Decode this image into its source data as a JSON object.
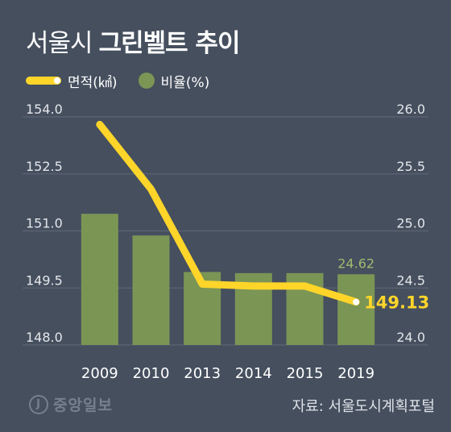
{
  "title": {
    "plain": "서울시",
    "bold": "그린벨트 추이"
  },
  "legend": {
    "line_label": "면적(㎢)",
    "bar_label": "비율(%)"
  },
  "source": "자료: 서울도시계획포털",
  "logo_text": "중앙일보",
  "colors": {
    "background": "#454f5e",
    "line": "#ffd52a",
    "bar": "#7b9555",
    "grid": "#5e6877",
    "axis_text": "#e3e6ea",
    "last_line_label": "#ffd52a",
    "last_bar_label": "#9fbb6f"
  },
  "chart_data": {
    "type": "bar+line",
    "categories": [
      "2009",
      "2010",
      "2013",
      "2014",
      "2015",
      "2019"
    ],
    "series": [
      {
        "name": "비율(%)",
        "type": "bar",
        "axis": "right",
        "values": [
          25.15,
          24.96,
          24.64,
          24.63,
          24.63,
          24.62
        ]
      },
      {
        "name": "면적(㎢)",
        "type": "line",
        "axis": "left",
        "values": [
          153.8,
          152.1,
          149.6,
          149.55,
          149.55,
          149.13
        ]
      }
    ],
    "left_axis": {
      "ticks": [
        "154.0",
        "152.5",
        "151.0",
        "149.5",
        "148.0"
      ],
      "range": [
        148.0,
        154.0
      ]
    },
    "right_axis": {
      "ticks": [
        "26.0",
        "25.5",
        "25.0",
        "24.5",
        "24.0"
      ],
      "range": [
        24.0,
        26.0
      ]
    },
    "annotations": {
      "last_line_value": "149.13",
      "last_bar_value": "24.62"
    },
    "grid": true
  }
}
